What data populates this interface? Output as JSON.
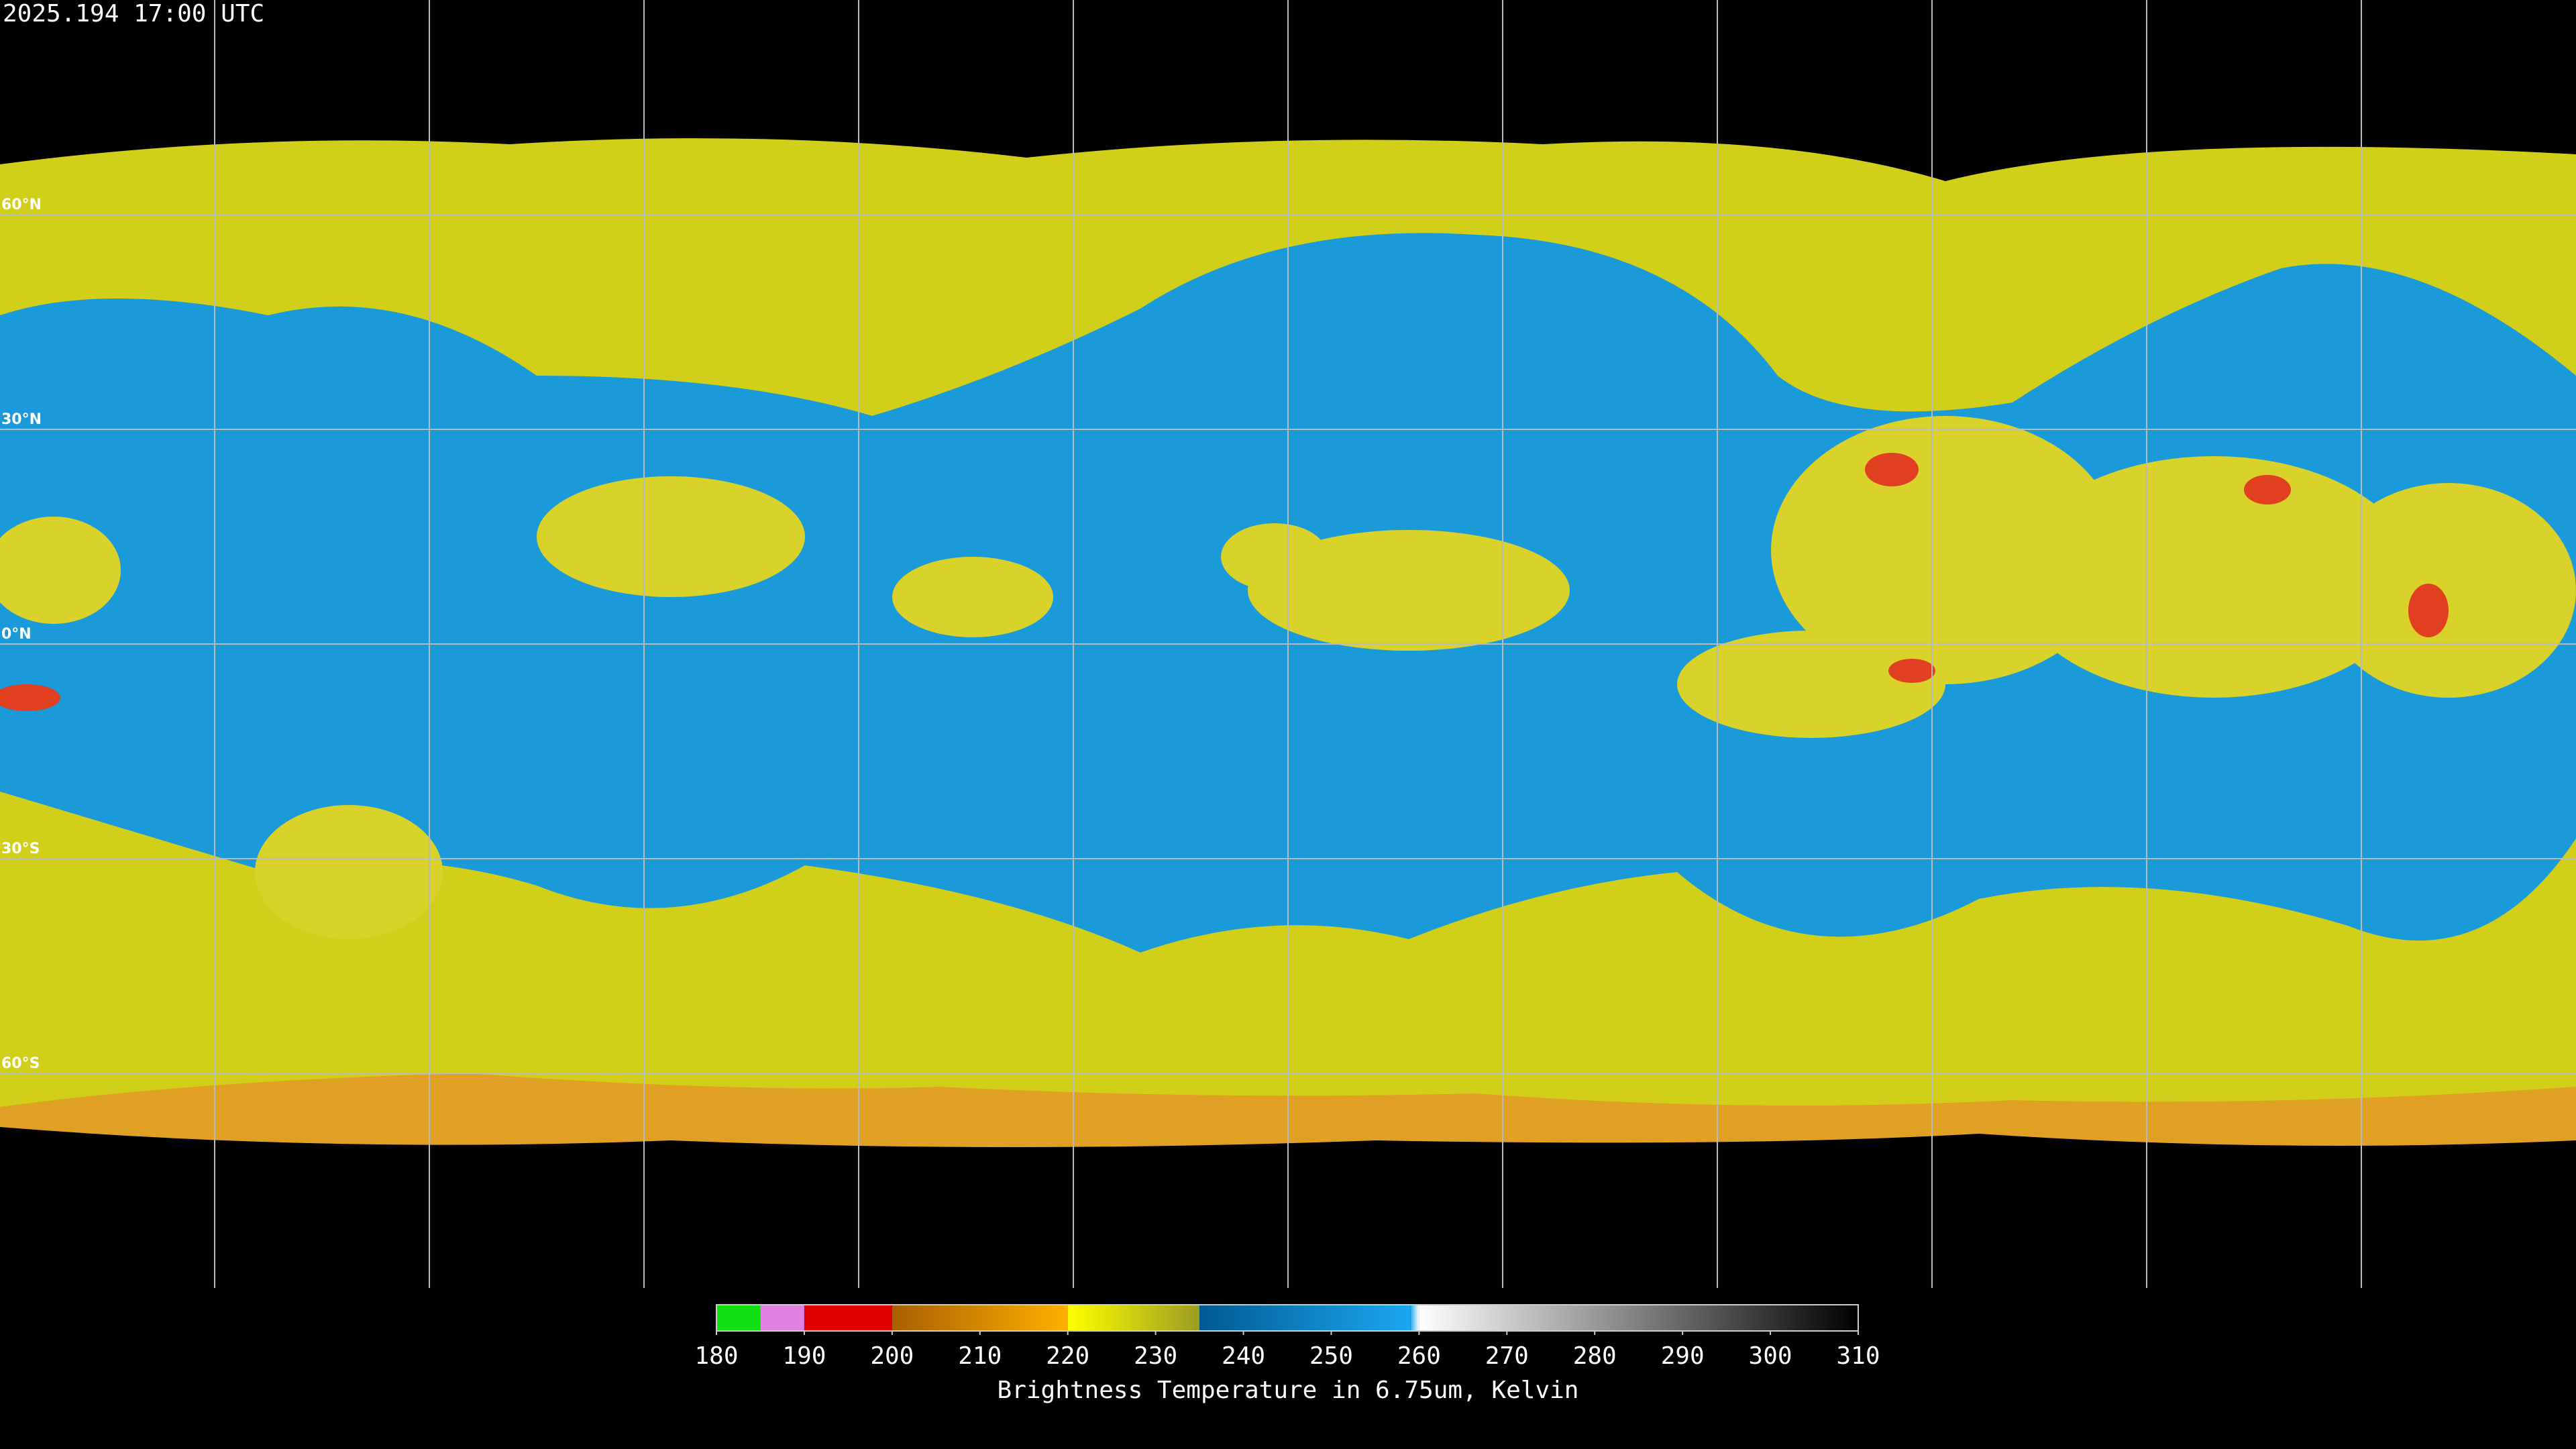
{
  "timestamp": "2025.194 17:00 UTC",
  "latitudes": [
    {
      "value": 60,
      "label": "60°N"
    },
    {
      "value": 30,
      "label": "30°N"
    },
    {
      "value": 0,
      "label": "0°N"
    },
    {
      "value": -30,
      "label": "30°S"
    },
    {
      "value": -60,
      "label": "60°S"
    }
  ],
  "colorbar": {
    "title": "Brightness Temperature in 6.75um, Kelvin",
    "lim": [
      180,
      310
    ],
    "ticks": [
      180,
      190,
      200,
      210,
      220,
      230,
      240,
      250,
      260,
      270,
      280,
      290,
      300,
      310
    ],
    "stops": [
      {
        "value": 180,
        "color": "#10e010"
      },
      {
        "value": 185,
        "color": "#10e010"
      },
      {
        "value": 185,
        "color": "#e080e0"
      },
      {
        "value": 190,
        "color": "#e080e0"
      },
      {
        "value": 190,
        "color": "#e00000"
      },
      {
        "value": 200,
        "color": "#e00000"
      },
      {
        "value": 200,
        "color": "#a86000"
      },
      {
        "value": 220,
        "color": "#ffb000"
      },
      {
        "value": 220,
        "color": "#ffff00"
      },
      {
        "value": 235,
        "color": "#9c9c20"
      },
      {
        "value": 235,
        "color": "#005a92"
      },
      {
        "value": 259,
        "color": "#1aa8f0"
      },
      {
        "value": 260,
        "color": "#ffffff"
      },
      {
        "value": 310,
        "color": "#000000"
      }
    ]
  }
}
